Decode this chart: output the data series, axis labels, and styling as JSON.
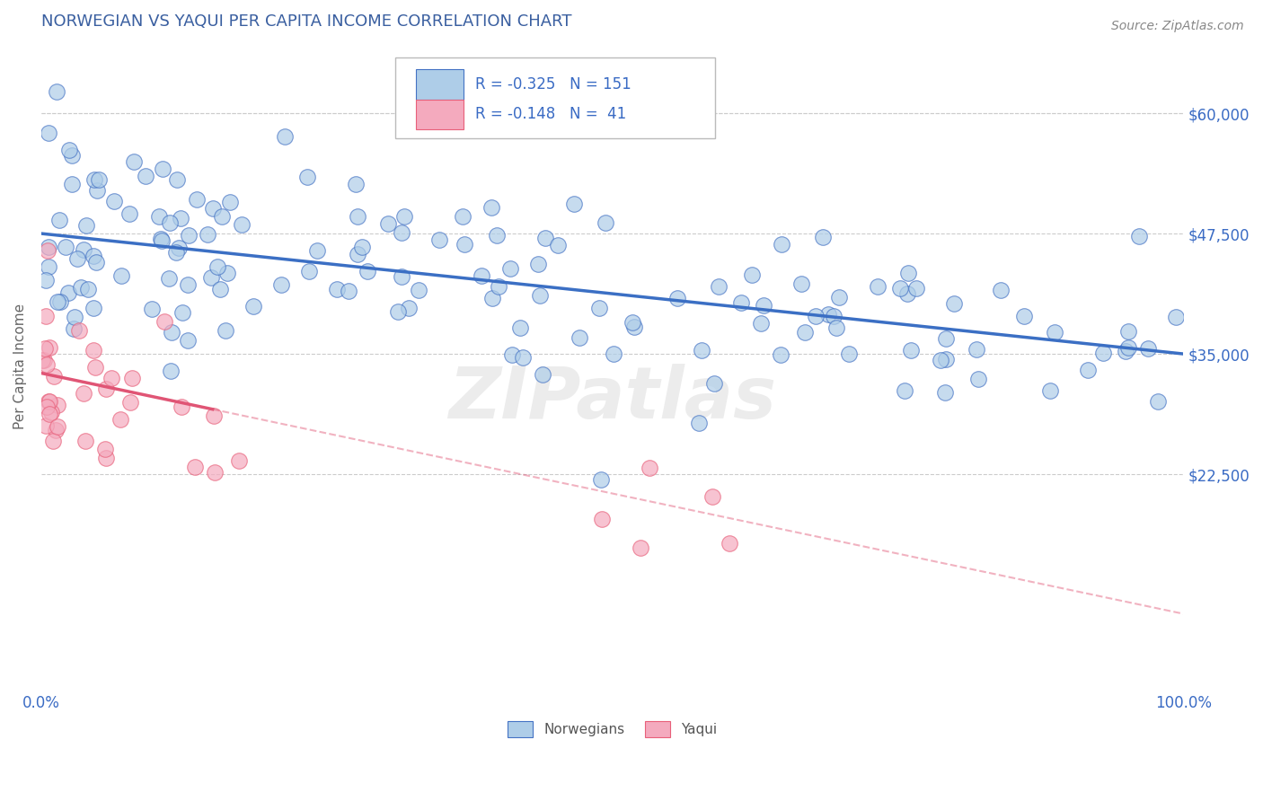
{
  "title": "NORWEGIAN VS YAQUI PER CAPITA INCOME CORRELATION CHART",
  "source_text": "Source: ZipAtlas.com",
  "ylabel": "Per Capita Income",
  "xlim": [
    0.0,
    100.0
  ],
  "ylim": [
    0,
    67500
  ],
  "ytick_vals": [
    22500,
    35000,
    47500,
    60000
  ],
  "ytick_labels": [
    "$22,500",
    "$35,000",
    "$47,500",
    "$60,000"
  ],
  "xtick_vals": [
    0,
    100
  ],
  "xtick_labels": [
    "0.0%",
    "100.0%"
  ],
  "norwegian_R": -0.325,
  "norwegian_N": 151,
  "yaqui_R": -0.148,
  "yaqui_N": 41,
  "blue_fill": "#AECDE8",
  "blue_edge": "#4472C4",
  "pink_fill": "#F4AABE",
  "pink_edge": "#E8607A",
  "blue_line": "#3B6FC4",
  "pink_line": "#E05575",
  "title_color": "#3A5FA0",
  "source_color": "#888888",
  "tick_color": "#3A6BC4",
  "ylabel_color": "#666666",
  "grid_color": "#CCCCCC",
  "bg_color": "#FFFFFF",
  "legend_text_color": "#333333",
  "legend_value_color": "#3A6BC4",
  "watermark": "ZIPatlas",
  "nor_line_x0": 0,
  "nor_line_y0": 47500,
  "nor_line_x1": 100,
  "nor_line_y1": 35000,
  "yaq_line_x0": 0,
  "yaq_line_y0": 33000,
  "yaq_line_x1": 100,
  "yaq_line_y1": 8000,
  "yaq_solid_end": 15
}
